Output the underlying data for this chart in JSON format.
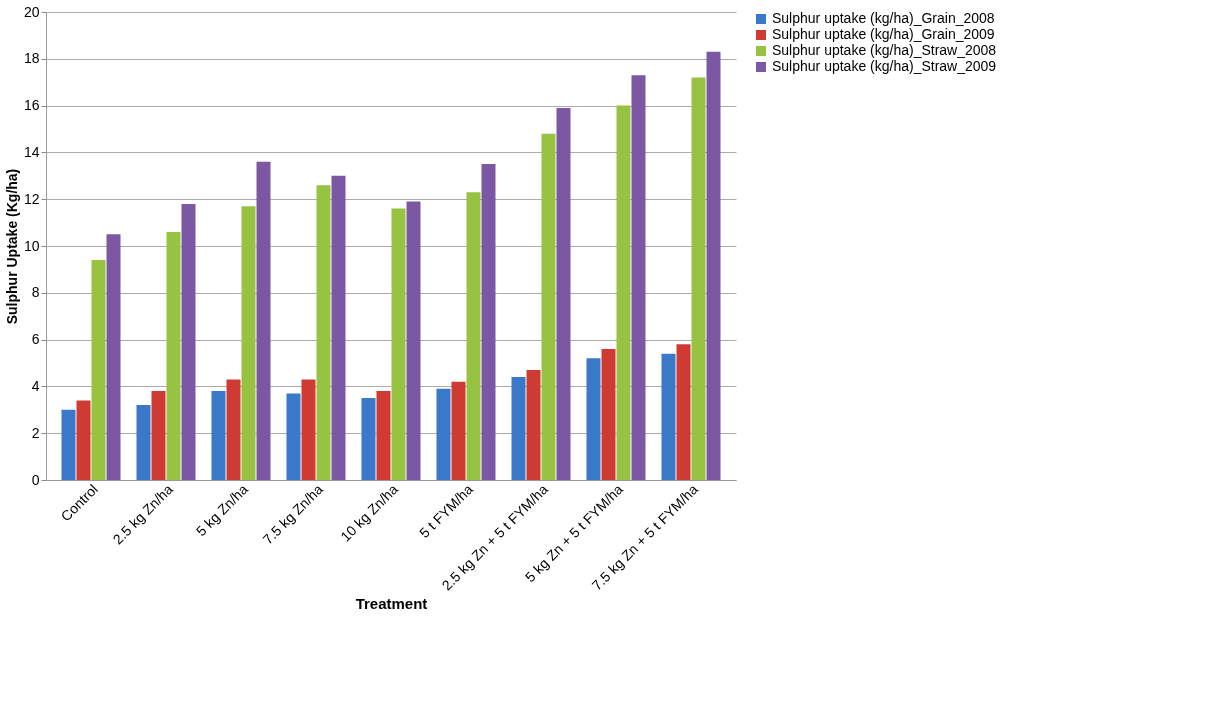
{
  "chart_data": {
    "type": "bar",
    "xlabel": "Treatment",
    "ylabel": "Sulphur Uptake (Kg/ha)",
    "categories": [
      "Control",
      "2.5 kg Zn/ha",
      "5 kg Zn/ha",
      "7.5 kg Zn/ha",
      "10 kg Zn/ha",
      "5 t FYM/ha",
      "2.5 kg Zn + 5 t FYM/ha",
      "5 kg Zn + 5 t FYM/ha",
      "7.5 kg Zn + 5 t FYM/ha"
    ],
    "series": [
      {
        "name": "Sulphur uptake (kg/ha)_Grain_2008",
        "color": "#3a78c9",
        "values": [
          3.0,
          3.2,
          3.8,
          3.7,
          3.5,
          3.9,
          4.4,
          5.2,
          5.4
        ]
      },
      {
        "name": "Sulphur uptake (kg/ha)_Grain_2009",
        "color": "#cf3b33",
        "values": [
          3.4,
          3.8,
          4.3,
          4.3,
          3.8,
          4.2,
          4.7,
          5.6,
          5.8
        ]
      },
      {
        "name": "Sulphur uptake (kg/ha)_Straw_2008",
        "color": "#98c241",
        "values": [
          9.4,
          10.6,
          11.7,
          12.6,
          11.6,
          12.3,
          14.8,
          16.0,
          17.2
        ]
      },
      {
        "name": "Sulphur uptake (kg/ha)_Straw_2009",
        "color": "#7c58a4",
        "values": [
          10.5,
          11.8,
          13.6,
          13.0,
          11.9,
          13.5,
          15.9,
          17.3,
          18.3
        ]
      }
    ],
    "ylim": [
      0,
      20
    ],
    "yticks": [
      0,
      2,
      4,
      6,
      8,
      10,
      12,
      14,
      16,
      18,
      20
    ],
    "grid": "y",
    "legend": "right"
  }
}
